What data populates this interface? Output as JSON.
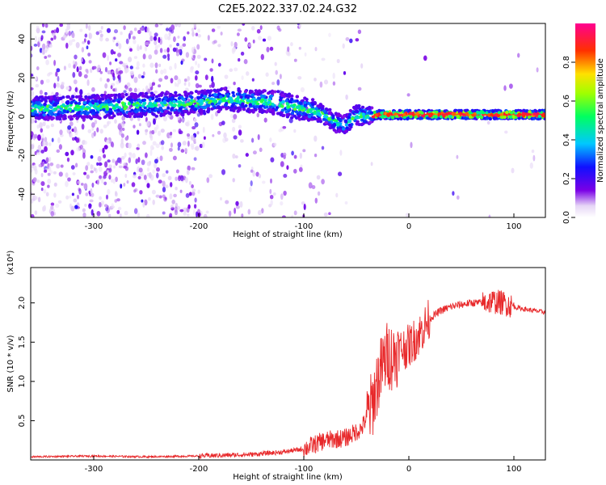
{
  "figure_title": "C2E5.2022.337.02.24.G32",
  "colors": {
    "snr_line": "#e8292b",
    "spectrogram_scatter": "#8a2be2"
  },
  "chart_data": [
    {
      "type": "heatmap",
      "title": "C2E5.2022.337.02.24.G32",
      "xlabel": "Height of straight line (km)",
      "ylabel": "Frequency (Hz)",
      "xlim": [
        -360,
        130
      ],
      "ylim": [
        -52,
        48
      ],
      "xticks": [
        -300,
        -200,
        -100,
        0,
        100
      ],
      "yticks": [
        -40,
        -20,
        0,
        20,
        40
      ],
      "ytick_labels": [
        "-40",
        "-20",
        "0",
        "20",
        "40"
      ],
      "grid": false,
      "colorbar": {
        "label": "Normalized spectral amplitude",
        "range": [
          0,
          1
        ],
        "ticks": [
          0.0,
          0.2,
          0.4,
          0.6,
          0.8
        ],
        "tick_labels": [
          "0.0",
          "0.2",
          "0.4",
          "0.6",
          "0.8"
        ],
        "colormap": "rainbow (white-violet-blue-cyan-green-yellow-red-magenta)"
      },
      "ridge": {
        "description": "center frequency of dominant spectral ridge",
        "points": [
          {
            "x": -360,
            "y": 4
          },
          {
            "x": -300,
            "y": 5
          },
          {
            "x": -250,
            "y": 6
          },
          {
            "x": -200,
            "y": 7
          },
          {
            "x": -175,
            "y": 9
          },
          {
            "x": -150,
            "y": 8
          },
          {
            "x": -125,
            "y": 7
          },
          {
            "x": -100,
            "y": 4
          },
          {
            "x": -85,
            "y": 2
          },
          {
            "x": -70,
            "y": -3
          },
          {
            "x": -60,
            "y": -4
          },
          {
            "x": -50,
            "y": 1
          },
          {
            "x": -40,
            "y": 0
          },
          {
            "x": -30,
            "y": 1
          },
          {
            "x": -20,
            "y": 1
          },
          {
            "x": 0,
            "y": 1
          },
          {
            "x": 50,
            "y": 1
          },
          {
            "x": 100,
            "y": 1
          },
          {
            "x": 130,
            "y": 1
          }
        ],
        "peak_amplitude_segment": {
          "x_start": -35,
          "x_end": 130,
          "amplitude": 0.95
        }
      }
    },
    {
      "type": "line",
      "xlabel": "Height of straight line (km)",
      "ylabel": "SNR (10 * v/v)",
      "scale_label": "(x10⁴)",
      "xlim": [
        -360,
        130
      ],
      "ylim": [
        0,
        2.45
      ],
      "xticks": [
        -300,
        -200,
        -100,
        0,
        100
      ],
      "yticks": [
        0.5,
        1.0,
        1.5,
        2.0
      ],
      "ytick_labels": [
        "0.5",
        "1.0",
        "1.5",
        "2.0"
      ],
      "grid": false,
      "series": [
        {
          "values_x": [
            -360,
            -300,
            -250,
            -200,
            -150,
            -120,
            -100,
            -80,
            -60,
            -45,
            -35,
            -30,
            -25,
            -20,
            -15,
            -10,
            0,
            10,
            20,
            30,
            40,
            50,
            60,
            70,
            80,
            90,
            100,
            110,
            120,
            130
          ],
          "values_y": [
            0.04,
            0.05,
            0.04,
            0.05,
            0.07,
            0.1,
            0.14,
            0.25,
            0.28,
            0.4,
            0.7,
            1.0,
            1.2,
            1.35,
            1.3,
            1.4,
            1.45,
            1.6,
            1.8,
            1.9,
            1.95,
            1.98,
            2.0,
            2.0,
            2.02,
            2.0,
            1.95,
            1.92,
            1.9,
            1.88
          ]
        }
      ]
    }
  ]
}
